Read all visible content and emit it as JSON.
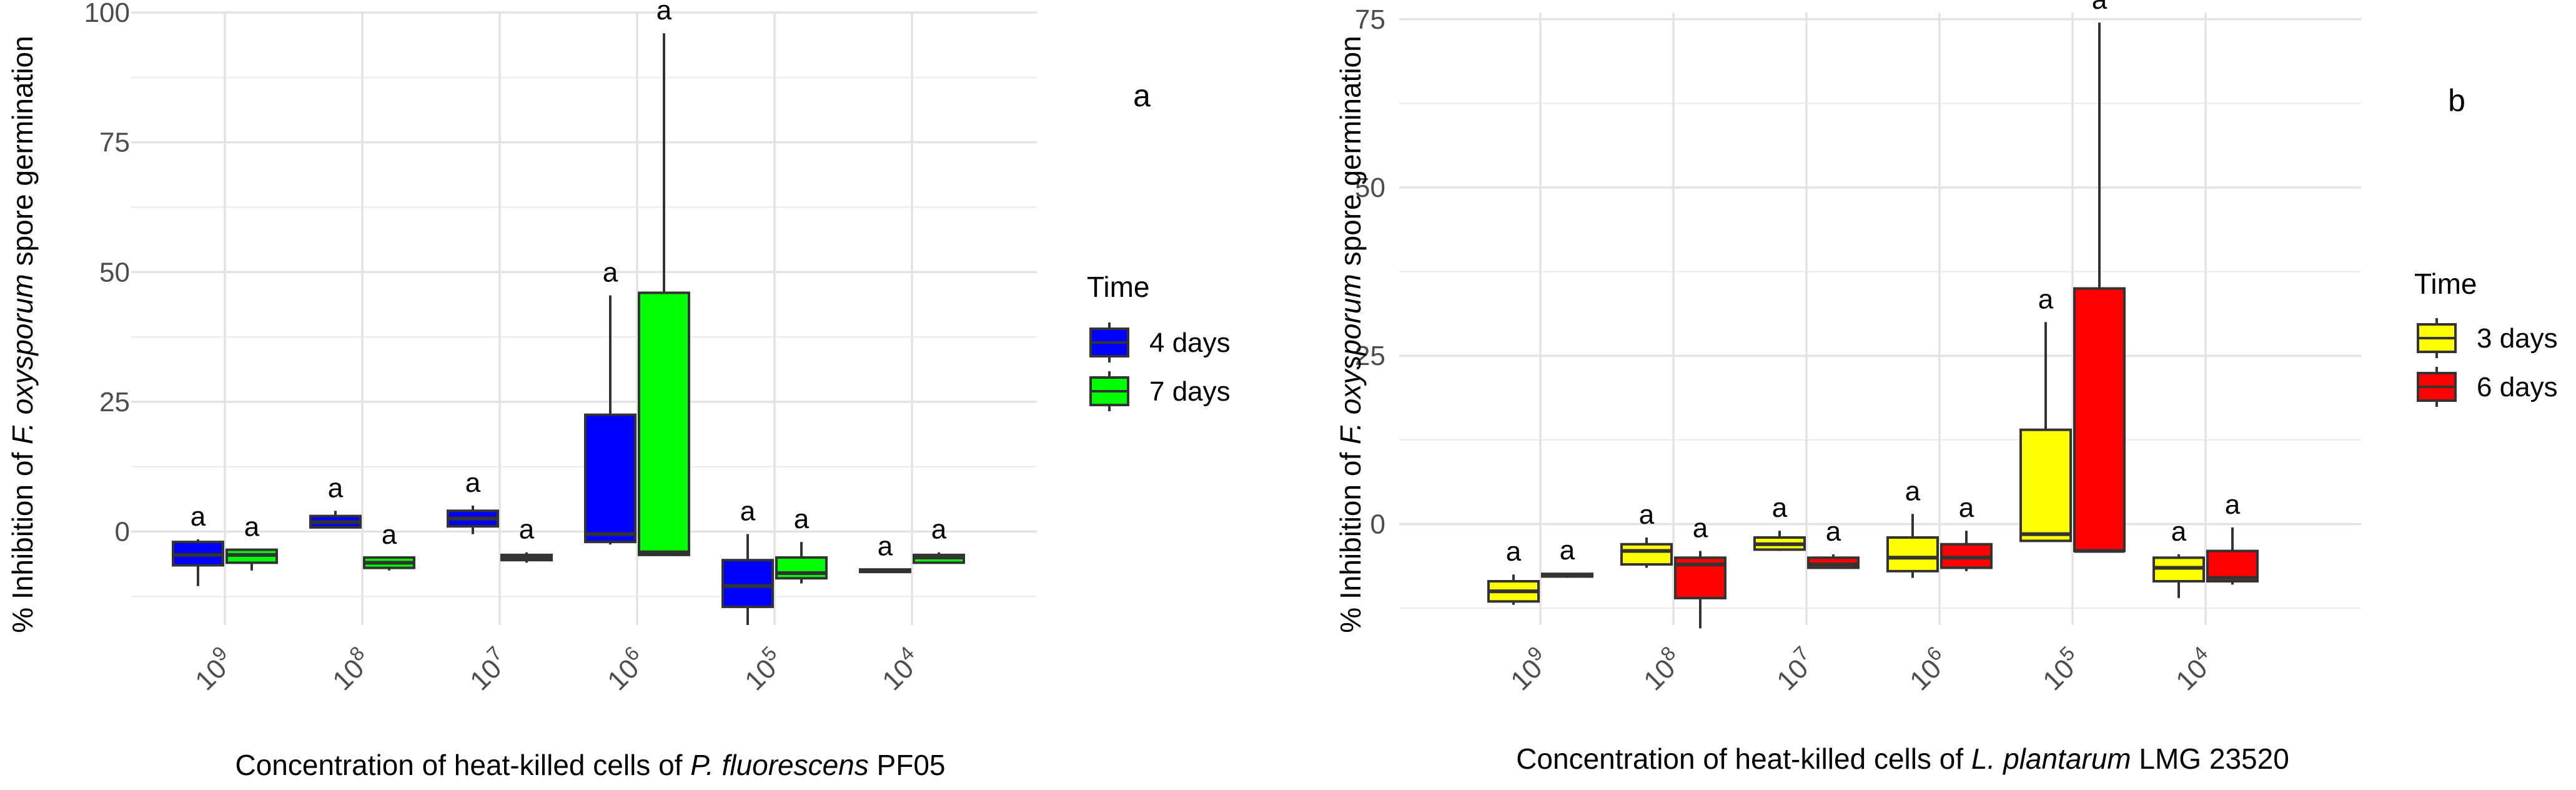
{
  "chart_data": [
    {
      "type": "box",
      "panel_label": "a",
      "ylabel_pre": "% Inhibition of ",
      "ylabel_species": "F. oxysporum",
      "ylabel_post": " spore germination",
      "xlabel_pre": "Concentration of heat-killed cells of ",
      "xlabel_species": "P. fluorescens",
      "xlabel_post": " PF05",
      "ylim": [
        -18,
        100
      ],
      "yticks": [
        0,
        25,
        50,
        75,
        100
      ],
      "categories": [
        {
          "base": "10",
          "exp": "9"
        },
        {
          "base": "10",
          "exp": "8"
        },
        {
          "base": "10",
          "exp": "7"
        },
        {
          "base": "10",
          "exp": "6"
        },
        {
          "base": "10",
          "exp": "5"
        },
        {
          "base": "10",
          "exp": "4"
        }
      ],
      "legend_title": "Time",
      "legend_position": "right",
      "series": [
        {
          "name": "4 days",
          "color": "#0000FF",
          "boxes": [
            {
              "min": -10.5,
              "q1": -6.5,
              "median": -4.5,
              "q3": -2,
              "max": -1.5,
              "label": "a"
            },
            {
              "min": 0.8,
              "q1": 0.8,
              "median": 1.8,
              "q3": 3,
              "max": 4,
              "label": "a"
            },
            {
              "min": -0.5,
              "q1": 1,
              "median": 2.5,
              "q3": 4,
              "max": 5,
              "label": "a"
            },
            {
              "min": -2.5,
              "q1": -2,
              "median": -0.5,
              "q3": 22.5,
              "max": 45.5,
              "label": "a"
            },
            {
              "min": -18,
              "q1": -14.5,
              "median": -10.5,
              "q3": -5.5,
              "max": -0.5,
              "label": "a"
            },
            {
              "min": -7.8,
              "q1": -7.5,
              "median": -7.5,
              "q3": -7.3,
              "max": -7.2,
              "label": "a"
            }
          ]
        },
        {
          "name": "7 days",
          "color": "#00FF00",
          "boxes": [
            {
              "min": -7.5,
              "q1": -6,
              "median": -4.5,
              "q3": -3.5,
              "max": -3.5,
              "label": "a"
            },
            {
              "min": -7.5,
              "q1": -7,
              "median": -6,
              "q3": -5,
              "max": -5,
              "label": "a"
            },
            {
              "min": -6,
              "q1": -5.5,
              "median": -5,
              "q3": -4.5,
              "max": -4,
              "label": "a"
            },
            {
              "min": -4.5,
              "q1": -4.5,
              "median": -4,
              "q3": 46,
              "max": 96,
              "label": "a"
            },
            {
              "min": -10,
              "q1": -9,
              "median": -8,
              "q3": -5,
              "max": -2,
              "label": "a"
            },
            {
              "min": -6,
              "q1": -6,
              "median": -5,
              "q3": -4.5,
              "max": -4,
              "label": "a"
            }
          ]
        }
      ]
    },
    {
      "type": "box",
      "panel_label": "b",
      "ylabel_pre": "% Inhibition of ",
      "ylabel_species": "F. oxysporum",
      "ylabel_post": " spore germination",
      "xlabel_pre": "Concentration of heat-killed cells of ",
      "xlabel_species": "L. plantarum",
      "xlabel_post": " LMG 23520",
      "ylim": [
        -15,
        76
      ],
      "yticks": [
        0,
        25,
        50,
        75
      ],
      "categories": [
        {
          "base": "10",
          "exp": "9"
        },
        {
          "base": "10",
          "exp": "8"
        },
        {
          "base": "10",
          "exp": "7"
        },
        {
          "base": "10",
          "exp": "6"
        },
        {
          "base": "10",
          "exp": "5"
        },
        {
          "base": "10",
          "exp": "4"
        }
      ],
      "legend_title": "Time",
      "legend_position": "right",
      "series": [
        {
          "name": "3 days",
          "color": "#FFFF00",
          "boxes": [
            {
              "min": -12,
              "q1": -11.5,
              "median": -10,
              "q3": -8.5,
              "max": -7.5,
              "label": "a"
            },
            {
              "min": -6.5,
              "q1": -6,
              "median": -4,
              "q3": -3,
              "max": -2,
              "label": "a"
            },
            {
              "min": -4,
              "q1": -3.8,
              "median": -3,
              "q3": -2,
              "max": -1,
              "label": "a"
            },
            {
              "min": -8,
              "q1": -7,
              "median": -5,
              "q3": -2,
              "max": 1.5,
              "label": "a"
            },
            {
              "min": -2.5,
              "q1": -2.5,
              "median": -1.5,
              "q3": 14,
              "max": 30,
              "label": "a"
            },
            {
              "min": -11,
              "q1": -8.5,
              "median": -6.5,
              "q3": -5,
              "max": -4.5,
              "label": "a"
            }
          ]
        },
        {
          "name": "6 days",
          "color": "#FF0000",
          "boxes": [
            {
              "min": -8,
              "q1": -7.8,
              "median": -7.6,
              "q3": -7.4,
              "max": -7.3,
              "label": "a"
            },
            {
              "min": -15.5,
              "q1": -11,
              "median": -6,
              "q3": -5,
              "max": -4,
              "label": "a"
            },
            {
              "min": -6.5,
              "q1": -6.5,
              "median": -6,
              "q3": -5,
              "max": -4.5,
              "label": "a"
            },
            {
              "min": -7,
              "q1": -6.5,
              "median": -5,
              "q3": -3,
              "max": -1,
              "label": "a"
            },
            {
              "min": -4,
              "q1": -4,
              "median": -4,
              "q3": 35,
              "max": 74.5,
              "label": "a"
            },
            {
              "min": -9,
              "q1": -8.5,
              "median": -8,
              "q3": -4,
              "max": -0.5,
              "label": "a"
            }
          ]
        }
      ]
    }
  ]
}
